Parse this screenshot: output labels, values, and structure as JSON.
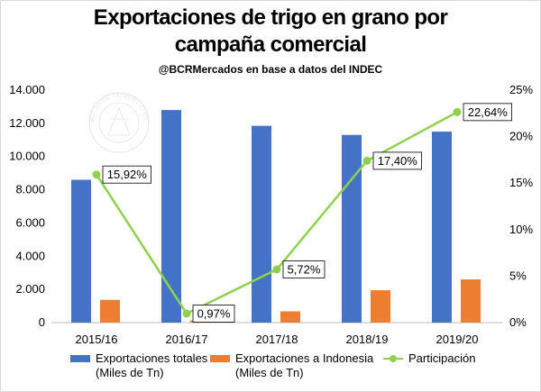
{
  "header": {
    "title_line1": "Exportaciones de trigo en grano por",
    "title_line2": "campaña comercial",
    "subtitle": "@BCRMercados  en base a datos del INDEC"
  },
  "watermark": {
    "text": "BOLSA DE COMERCIO DE ROSARIO"
  },
  "colors": {
    "series1": "#4472c4",
    "series2": "#ed7d31",
    "series3": "#8fd14f"
  },
  "chart_data": {
    "type": "bar",
    "categories": [
      "2015/16",
      "2016/17",
      "2017/18",
      "2018/19",
      "2019/20"
    ],
    "series": [
      {
        "name": "Exportaciones totales (Miles de Tn)",
        "type": "bar",
        "axis": "left",
        "values": [
          8600,
          12800,
          11850,
          11300,
          11500
        ]
      },
      {
        "name": "Exportaciones a Indonesia (Miles de Tn)",
        "type": "bar",
        "axis": "left",
        "values": [
          1370,
          130,
          680,
          1950,
          2600
        ]
      },
      {
        "name": "Participación",
        "type": "line",
        "axis": "right",
        "values": [
          15.92,
          0.97,
          5.72,
          17.4,
          22.64
        ],
        "labels": [
          "15,92%",
          "0,97%",
          "5,72%",
          "17,40%",
          "22,64%"
        ]
      }
    ],
    "y_left": {
      "min": 0,
      "max": 14000,
      "ticks": [
        "0",
        "2.000",
        "4.000",
        "6.000",
        "8.000",
        "10.000",
        "12.000",
        "14.000"
      ]
    },
    "y_right": {
      "min": 0,
      "max": 25,
      "ticks": [
        "0%",
        "5%",
        "10%",
        "15%",
        "20%",
        "25%"
      ]
    },
    "grid": false,
    "legend_position": "bottom"
  },
  "legend": [
    {
      "line1": "Exportaciones totales",
      "line2": "(Miles de Tn)"
    },
    {
      "line1": "Exportaciones a Indonesia",
      "line2": "(Miles de Tn)"
    },
    {
      "line1": "Participación",
      "line2": ""
    }
  ]
}
